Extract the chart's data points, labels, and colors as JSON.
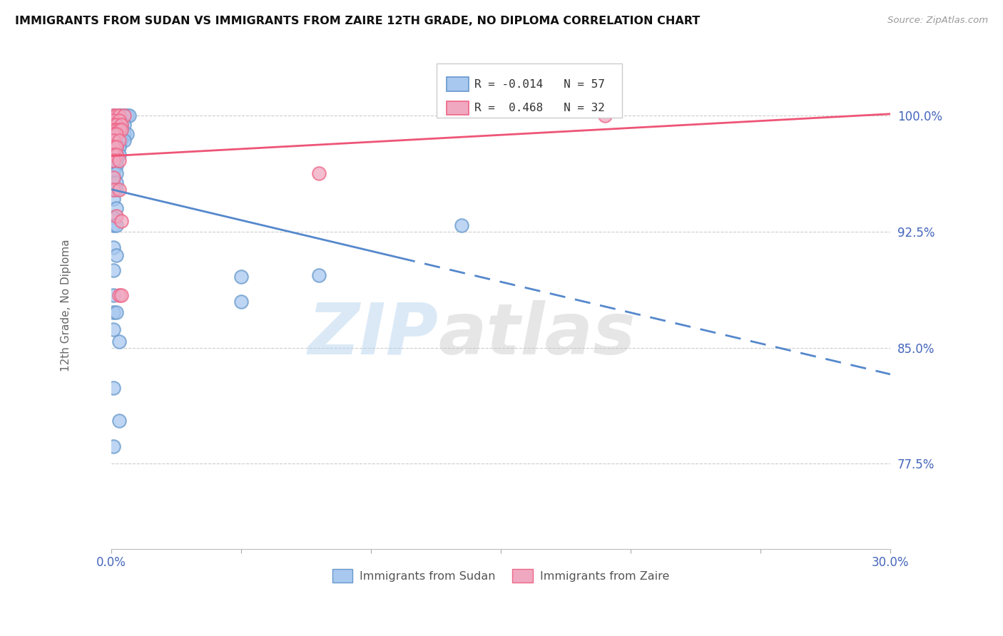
{
  "title": "IMMIGRANTS FROM SUDAN VS IMMIGRANTS FROM ZAIRE 12TH GRADE, NO DIPLOMA CORRELATION CHART",
  "source": "Source: ZipAtlas.com",
  "ylabel_label": "12th Grade, No Diploma",
  "ytick_labels": [
    "100.0%",
    "92.5%",
    "85.0%",
    "77.5%"
  ],
  "ytick_values": [
    1.0,
    0.925,
    0.85,
    0.775
  ],
  "xlim": [
    0.0,
    0.3
  ],
  "ylim": [
    0.72,
    1.035
  ],
  "legend_label1": "Immigrants from Sudan",
  "legend_label2": "Immigrants from Zaire",
  "r1": "-0.014",
  "n1": "57",
  "r2": "0.468",
  "n2": "32",
  "color_sudan_fill": "#a8c8f0",
  "color_sudan_edge": "#6699cc",
  "color_zaire_fill": "#f0a8c0",
  "color_zaire_edge": "#ee6688",
  "color_line_sudan": "#5588cc",
  "color_line_zaire": "#ee5577",
  "watermark_zip": "ZIP",
  "watermark_atlas": "atlas",
  "sudan_points": [
    [
      0.001,
      1.0
    ],
    [
      0.003,
      1.0
    ],
    [
      0.004,
      1.0
    ],
    [
      0.005,
      1.0
    ],
    [
      0.006,
      1.0
    ],
    [
      0.007,
      1.0
    ],
    [
      0.002,
      0.997
    ],
    [
      0.003,
      0.997
    ],
    [
      0.002,
      0.994
    ],
    [
      0.004,
      0.994
    ],
    [
      0.005,
      0.994
    ],
    [
      0.002,
      0.991
    ],
    [
      0.003,
      0.991
    ],
    [
      0.004,
      0.991
    ],
    [
      0.003,
      0.988
    ],
    [
      0.004,
      0.988
    ],
    [
      0.005,
      0.988
    ],
    [
      0.006,
      0.988
    ],
    [
      0.002,
      0.984
    ],
    [
      0.003,
      0.984
    ],
    [
      0.004,
      0.984
    ],
    [
      0.005,
      0.984
    ],
    [
      0.002,
      0.98
    ],
    [
      0.003,
      0.98
    ],
    [
      0.001,
      0.975
    ],
    [
      0.002,
      0.975
    ],
    [
      0.003,
      0.975
    ],
    [
      0.001,
      0.971
    ],
    [
      0.002,
      0.971
    ],
    [
      0.001,
      0.968
    ],
    [
      0.002,
      0.968
    ],
    [
      0.001,
      0.963
    ],
    [
      0.002,
      0.963
    ],
    [
      0.001,
      0.957
    ],
    [
      0.002,
      0.957
    ],
    [
      0.001,
      0.952
    ],
    [
      0.002,
      0.952
    ],
    [
      0.001,
      0.946
    ],
    [
      0.002,
      0.94
    ],
    [
      0.001,
      0.934
    ],
    [
      0.001,
      0.929
    ],
    [
      0.002,
      0.929
    ],
    [
      0.135,
      0.929
    ],
    [
      0.001,
      0.915
    ],
    [
      0.001,
      0.9
    ],
    [
      0.08,
      0.897
    ],
    [
      0.001,
      0.884
    ],
    [
      0.001,
      0.873
    ],
    [
      0.002,
      0.873
    ],
    [
      0.001,
      0.862
    ],
    [
      0.003,
      0.854
    ],
    [
      0.001,
      0.824
    ],
    [
      0.003,
      0.803
    ],
    [
      0.05,
      0.896
    ],
    [
      0.05,
      0.88
    ],
    [
      0.002,
      0.91
    ],
    [
      0.001,
      0.786
    ]
  ],
  "zaire_points": [
    [
      0.001,
      1.0
    ],
    [
      0.002,
      1.0
    ],
    [
      0.003,
      1.0
    ],
    [
      0.005,
      1.0
    ],
    [
      0.19,
      1.0
    ],
    [
      0.001,
      0.997
    ],
    [
      0.003,
      0.997
    ],
    [
      0.001,
      0.994
    ],
    [
      0.002,
      0.994
    ],
    [
      0.004,
      0.994
    ],
    [
      0.001,
      0.991
    ],
    [
      0.002,
      0.991
    ],
    [
      0.003,
      0.991
    ],
    [
      0.004,
      0.991
    ],
    [
      0.001,
      0.988
    ],
    [
      0.002,
      0.988
    ],
    [
      0.001,
      0.984
    ],
    [
      0.003,
      0.984
    ],
    [
      0.001,
      0.98
    ],
    [
      0.002,
      0.98
    ],
    [
      0.001,
      0.975
    ],
    [
      0.002,
      0.975
    ],
    [
      0.001,
      0.971
    ],
    [
      0.003,
      0.971
    ],
    [
      0.001,
      0.96
    ],
    [
      0.001,
      0.952
    ],
    [
      0.003,
      0.952
    ],
    [
      0.002,
      0.935
    ],
    [
      0.004,
      0.932
    ],
    [
      0.003,
      0.884
    ],
    [
      0.004,
      0.884
    ],
    [
      0.08,
      0.963
    ]
  ]
}
